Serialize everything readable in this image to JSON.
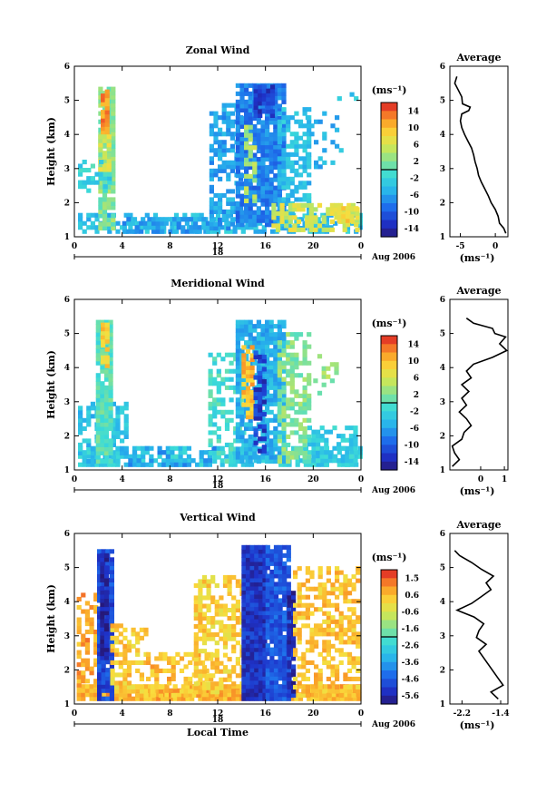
{
  "chart_data": [
    {
      "type": "heatmap",
      "title": "Zonal Wind",
      "ylabel": "Height (km)",
      "xlabel": "",
      "x_ticks": [
        "0",
        "4",
        "8",
        "12",
        "16",
        "20",
        "0"
      ],
      "xlim": [
        0,
        24
      ],
      "y_ticks": [
        "1",
        "2",
        "3",
        "4",
        "5",
        "6"
      ],
      "ylim": [
        1,
        6
      ],
      "date_day": "18",
      "date_label": "Aug 2006",
      "colorbar": {
        "unit": "(ms⁻¹)",
        "ticks": [
          "14",
          "10",
          "6",
          "2",
          "-2",
          "-6",
          "-10",
          "-14"
        ],
        "range": [
          -16,
          16
        ]
      },
      "regions": [
        {
          "x0": 0.3,
          "x1": 23.8,
          "y0": 1.1,
          "y1": 1.65,
          "value": -4,
          "fill": 0.55
        },
        {
          "x0": 2.0,
          "x1": 3.1,
          "y0": 1.2,
          "y1": 5.4,
          "value": 2,
          "fill": 0.9
        },
        {
          "x0": 2.2,
          "x1": 2.7,
          "y0": 4.0,
          "y1": 5.3,
          "value": 12,
          "fill": 0.9
        },
        {
          "x0": 2.0,
          "x1": 3.0,
          "y0": 2.8,
          "y1": 4.0,
          "value": 6,
          "fill": 0.8
        },
        {
          "x0": 0.3,
          "x1": 3.0,
          "y0": 2.3,
          "y1": 3.2,
          "value": -2,
          "fill": 0.4
        },
        {
          "x0": 4.0,
          "x1": 11.5,
          "y0": 1.1,
          "y1": 1.55,
          "value": -6,
          "fill": 0.65
        },
        {
          "x0": 11.3,
          "x1": 14.0,
          "y0": 1.2,
          "y1": 4.9,
          "value": -6,
          "fill": 0.5
        },
        {
          "x0": 13.5,
          "x1": 17.5,
          "y0": 1.3,
          "y1": 5.4,
          "value": -8,
          "fill": 0.85
        },
        {
          "x0": 15.0,
          "x1": 16.5,
          "y0": 4.5,
          "y1": 5.4,
          "value": -12,
          "fill": 0.8
        },
        {
          "x0": 14.2,
          "x1": 15.2,
          "y0": 2.0,
          "y1": 4.2,
          "value": 4,
          "fill": 0.45
        },
        {
          "x0": 17.0,
          "x1": 19.5,
          "y0": 1.2,
          "y1": 4.8,
          "value": -4,
          "fill": 0.6
        },
        {
          "x0": 16.5,
          "x1": 23.8,
          "y0": 1.15,
          "y1": 1.9,
          "value": 6,
          "fill": 0.55
        },
        {
          "x0": 19.0,
          "x1": 22.5,
          "y0": 3.0,
          "y1": 4.6,
          "value": -5,
          "fill": 0.2
        },
        {
          "x0": 22.0,
          "x1": 23.5,
          "y0": 5.0,
          "y1": 5.2,
          "value": -4,
          "fill": 0.3
        },
        {
          "x0": 22.0,
          "x1": 23.5,
          "y0": 1.3,
          "y1": 1.9,
          "value": 8,
          "fill": 0.6
        }
      ],
      "average_profile": {
        "title": "Average",
        "xlabel": "(ms⁻¹)",
        "x_ticks": [
          -5,
          0
        ],
        "xlim": [
          -6.5,
          1.8
        ],
        "y_ticks": [
          "1",
          "2",
          "3",
          "4",
          "5",
          "6"
        ],
        "ylim": [
          1,
          6
        ],
        "points": [
          {
            "x": 1.5,
            "y": 1.1
          },
          {
            "x": 1.2,
            "y": 1.25
          },
          {
            "x": 0.6,
            "y": 1.4
          },
          {
            "x": 0.4,
            "y": 1.6
          },
          {
            "x": 0.0,
            "y": 1.8
          },
          {
            "x": -0.6,
            "y": 2.0
          },
          {
            "x": -1.0,
            "y": 2.2
          },
          {
            "x": -1.5,
            "y": 2.4
          },
          {
            "x": -2.0,
            "y": 2.6
          },
          {
            "x": -2.4,
            "y": 2.8
          },
          {
            "x": -2.6,
            "y": 3.0
          },
          {
            "x": -2.9,
            "y": 3.2
          },
          {
            "x": -3.1,
            "y": 3.4
          },
          {
            "x": -3.4,
            "y": 3.6
          },
          {
            "x": -3.9,
            "y": 3.8
          },
          {
            "x": -4.4,
            "y": 4.0
          },
          {
            "x": -4.8,
            "y": 4.2
          },
          {
            "x": -5.0,
            "y": 4.4
          },
          {
            "x": -4.8,
            "y": 4.6
          },
          {
            "x": -3.8,
            "y": 4.7
          },
          {
            "x": -3.6,
            "y": 4.8
          },
          {
            "x": -4.7,
            "y": 4.9
          },
          {
            "x": -4.8,
            "y": 5.1
          },
          {
            "x": -5.3,
            "y": 5.3
          },
          {
            "x": -5.8,
            "y": 5.5
          },
          {
            "x": -5.5,
            "y": 5.7
          }
        ]
      }
    },
    {
      "type": "heatmap",
      "title": "Meridional Wind",
      "ylabel": "Height (km)",
      "xlabel": "",
      "x_ticks": [
        "0",
        "4",
        "8",
        "12",
        "16",
        "20",
        "0"
      ],
      "xlim": [
        0,
        24
      ],
      "y_ticks": [
        "1",
        "2",
        "3",
        "4",
        "5",
        "6"
      ],
      "ylim": [
        1,
        6
      ],
      "date_day": "18",
      "date_label": "Aug 2006",
      "colorbar": {
        "unit": "(ms⁻¹)",
        "ticks": [
          "14",
          "10",
          "6",
          "2",
          "-2",
          "-6",
          "-10",
          "-14"
        ],
        "range": [
          -16,
          16
        ]
      },
      "regions": [
        {
          "x0": 0.3,
          "x1": 23.8,
          "y0": 1.1,
          "y1": 1.7,
          "value": -3,
          "fill": 0.6
        },
        {
          "x0": 0.3,
          "x1": 4.5,
          "y0": 1.2,
          "y1": 3.0,
          "value": -4,
          "fill": 0.55
        },
        {
          "x0": 1.8,
          "x1": 3.2,
          "y0": 1.2,
          "y1": 5.4,
          "value": 0,
          "fill": 0.9
        },
        {
          "x0": 2.2,
          "x1": 2.7,
          "y0": 4.0,
          "y1": 5.3,
          "value": 9,
          "fill": 0.8
        },
        {
          "x0": 4.5,
          "x1": 11.5,
          "y0": 1.1,
          "y1": 1.6,
          "value": -6,
          "fill": 0.4
        },
        {
          "x0": 11.2,
          "x1": 14.0,
          "y0": 1.2,
          "y1": 4.4,
          "value": -1,
          "fill": 0.5
        },
        {
          "x0": 13.5,
          "x1": 17.5,
          "y0": 1.2,
          "y1": 5.4,
          "value": -5,
          "fill": 0.85
        },
        {
          "x0": 14.0,
          "x1": 14.8,
          "y0": 2.5,
          "y1": 4.6,
          "value": 10,
          "fill": 0.7
        },
        {
          "x0": 15.0,
          "x1": 15.8,
          "y0": 1.5,
          "y1": 4.5,
          "value": -12,
          "fill": 0.6
        },
        {
          "x0": 17.0,
          "x1": 19.5,
          "y0": 1.2,
          "y1": 5.0,
          "value": 2,
          "fill": 0.55
        },
        {
          "x0": 19.5,
          "x1": 23.5,
          "y0": 1.1,
          "y1": 2.2,
          "value": -3,
          "fill": 0.55
        },
        {
          "x0": 20.0,
          "x1": 22.0,
          "y0": 3.2,
          "y1": 4.5,
          "value": 3,
          "fill": 0.15
        }
      ],
      "average_profile": {
        "title": "Average",
        "xlabel": "(ms⁻¹)",
        "x_ticks": [
          0,
          1
        ],
        "xlim": [
          -1.3,
          1.15
        ],
        "y_ticks": [
          "1",
          "2",
          "3",
          "4",
          "5",
          "6"
        ],
        "ylim": [
          1,
          6
        ],
        "points": [
          {
            "x": -1.2,
            "y": 1.1
          },
          {
            "x": -0.9,
            "y": 1.3
          },
          {
            "x": -1.1,
            "y": 1.5
          },
          {
            "x": -1.2,
            "y": 1.7
          },
          {
            "x": -0.8,
            "y": 1.9
          },
          {
            "x": -0.7,
            "y": 2.1
          },
          {
            "x": -0.4,
            "y": 2.3
          },
          {
            "x": -0.6,
            "y": 2.5
          },
          {
            "x": -0.9,
            "y": 2.7
          },
          {
            "x": -0.6,
            "y": 2.9
          },
          {
            "x": -0.8,
            "y": 3.1
          },
          {
            "x": -0.5,
            "y": 3.3
          },
          {
            "x": -0.8,
            "y": 3.5
          },
          {
            "x": -0.4,
            "y": 3.7
          },
          {
            "x": -0.6,
            "y": 3.9
          },
          {
            "x": -0.3,
            "y": 4.1
          },
          {
            "x": 0.5,
            "y": 4.3
          },
          {
            "x": 1.1,
            "y": 4.5
          },
          {
            "x": 0.8,
            "y": 4.7
          },
          {
            "x": 1.05,
            "y": 4.9
          },
          {
            "x": 0.6,
            "y": 5.0
          },
          {
            "x": 0.5,
            "y": 5.15
          },
          {
            "x": -0.3,
            "y": 5.3
          },
          {
            "x": -0.6,
            "y": 5.45
          }
        ]
      }
    },
    {
      "type": "heatmap",
      "title": "Vertical Wind",
      "ylabel": "Height (km)",
      "xlabel": "Local Time",
      "x_ticks": [
        "0",
        "4",
        "8",
        "12",
        "16",
        "20",
        "0"
      ],
      "xlim": [
        0,
        24
      ],
      "y_ticks": [
        "1",
        "2",
        "3",
        "4",
        "5",
        "6"
      ],
      "ylim": [
        1,
        6
      ],
      "date_day": "18",
      "date_label": "Aug 2006",
      "colorbar": {
        "unit": "(ms⁻¹)",
        "ticks": [
          "1.5",
          "0.6",
          "-0.6",
          "-1.6",
          "-2.6",
          "-3.6",
          "-4.6",
          "-5.6"
        ],
        "range": [
          -6.0,
          2.0
        ]
      },
      "regions": [
        {
          "x0": 0.2,
          "x1": 23.8,
          "y0": 1.1,
          "y1": 1.55,
          "value": 0.6,
          "fill": 0.95
        },
        {
          "x0": 0.2,
          "x1": 1.8,
          "y0": 1.5,
          "y1": 4.2,
          "value": 0.8,
          "fill": 0.55
        },
        {
          "x0": 1.9,
          "x1": 3.0,
          "y0": 1.1,
          "y1": 5.5,
          "value": -4.8,
          "fill": 0.95
        },
        {
          "x0": 2.15,
          "x1": 2.7,
          "y0": 2.3,
          "y1": 5.4,
          "value": -5.6,
          "fill": 0.9
        },
        {
          "x0": 3.0,
          "x1": 6.0,
          "y0": 1.2,
          "y1": 3.3,
          "value": 0.3,
          "fill": 0.5
        },
        {
          "x0": 6.0,
          "x1": 11.5,
          "y0": 1.2,
          "y1": 2.5,
          "value": 0.5,
          "fill": 0.45
        },
        {
          "x0": 10.0,
          "x1": 14.0,
          "y0": 1.3,
          "y1": 4.7,
          "value": 0.2,
          "fill": 0.55
        },
        {
          "x0": 14.0,
          "x1": 16.0,
          "y0": 1.1,
          "y1": 5.6,
          "value": -5.2,
          "fill": 1.0
        },
        {
          "x0": 16.0,
          "x1": 17.8,
          "y0": 1.1,
          "y1": 5.6,
          "value": -4.6,
          "fill": 0.95
        },
        {
          "x0": 17.8,
          "x1": 18.3,
          "y0": 1.2,
          "y1": 4.3,
          "value": -5.4,
          "fill": 0.9
        },
        {
          "x0": 18.3,
          "x1": 23.8,
          "y0": 1.2,
          "y1": 5.0,
          "value": 0.4,
          "fill": 0.55
        }
      ],
      "average_profile": {
        "title": "Average",
        "xlabel": "(ms⁻¹)",
        "x_ticks": [
          -2.2,
          -1.4
        ],
        "xlim": [
          -2.45,
          -1.25
        ],
        "y_ticks": [
          "1",
          "2",
          "3",
          "4",
          "5",
          "6"
        ],
        "ylim": [
          1,
          6
        ],
        "points": [
          {
            "x": -1.45,
            "y": 1.15
          },
          {
            "x": -1.6,
            "y": 1.35
          },
          {
            "x": -1.35,
            "y": 1.55
          },
          {
            "x": -1.45,
            "y": 1.75
          },
          {
            "x": -1.55,
            "y": 1.95
          },
          {
            "x": -1.65,
            "y": 2.15
          },
          {
            "x": -1.75,
            "y": 2.35
          },
          {
            "x": -1.85,
            "y": 2.55
          },
          {
            "x": -1.7,
            "y": 2.75
          },
          {
            "x": -1.9,
            "y": 2.95
          },
          {
            "x": -1.85,
            "y": 3.15
          },
          {
            "x": -1.75,
            "y": 3.35
          },
          {
            "x": -1.95,
            "y": 3.55
          },
          {
            "x": -2.3,
            "y": 3.75
          },
          {
            "x": -2.0,
            "y": 3.95
          },
          {
            "x": -1.8,
            "y": 4.15
          },
          {
            "x": -1.6,
            "y": 4.35
          },
          {
            "x": -1.7,
            "y": 4.55
          },
          {
            "x": -1.55,
            "y": 4.75
          },
          {
            "x": -1.8,
            "y": 4.95
          },
          {
            "x": -2.0,
            "y": 5.15
          },
          {
            "x": -2.25,
            "y": 5.35
          },
          {
            "x": -2.35,
            "y": 5.5
          }
        ]
      }
    }
  ]
}
